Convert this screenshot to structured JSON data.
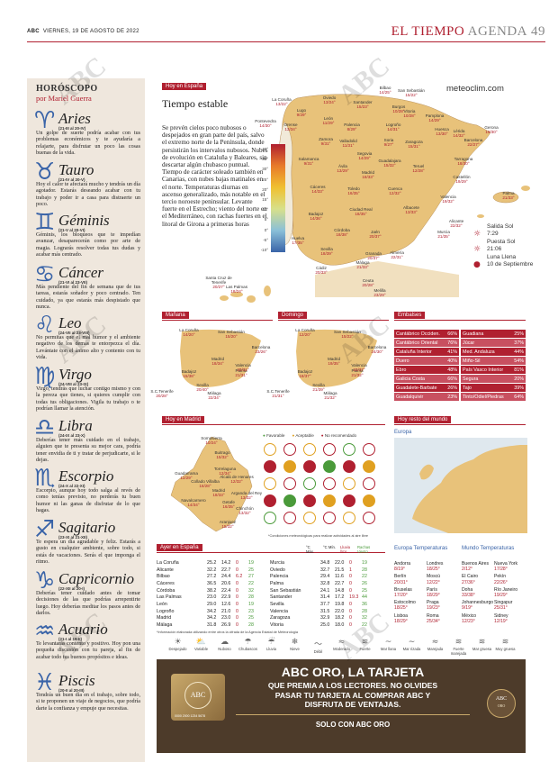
{
  "header": {
    "paper": "ABC",
    "date": "VIERNES, 19 DE AGOSTO DE 2022",
    "section": "EL TIEMPO",
    "agenda": "AGENDA",
    "page": "49"
  },
  "watermark": "ABC",
  "horoscope": {
    "title": "HORÓSCOPO",
    "author": "por Mariel Guerra",
    "signs": [
      {
        "glyph": "♈",
        "name": "Aries",
        "dates": "(21-III al 20-IV)",
        "text": "Un golpe de suerte podría acabar con tus problemas económicos y te ayudaría a relajarte, para disfrutar un poco las cosas buenas de la vida."
      },
      {
        "glyph": "♉",
        "name": "Tauro",
        "dates": "(21-IV al 20-V)",
        "text": "Hoy el calor te afectará mucho y tendrás un día agotador. Estarás deseando acabar con tu trabajo y poder ir a casa para distraerte un poco."
      },
      {
        "glyph": "♊",
        "name": "Géminis",
        "dates": "(21-V al 20-VI)",
        "text": "Géminis, los bloqueos que te impedían avanzar, desaparecerán como por arte de magia. Lograrás resolver todas tus dudas y acabar más centrado."
      },
      {
        "glyph": "♋",
        "name": "Cáncer",
        "dates": "(21-VI al 23-VII)",
        "text": "Más pendiente del fin de semana que de tus tareas, estarás soñador y poco centrado. Ten cuidado, ya que estarás más despistado que nunca."
      },
      {
        "glyph": "♌",
        "name": "Leo",
        "dates": "(24-VII al 23-VIII)",
        "text": "No permitas que el mal humor y el ambiente negativo de los demás te entorpezca el día. Levántate con el ánimo alto y contento con tu vida."
      },
      {
        "glyph": "♍",
        "name": "Virgo",
        "dates": "(24-VIII al 23-IX)",
        "text": "Virgo, tendrás que luchar contigo mismo y con la pereza que tienes, si quieres cumplir con todas tus obligaciones. Vigila tu trabajo o te podrían llamar la atención."
      },
      {
        "glyph": "♎",
        "name": "Libra",
        "dates": "(24-IX al 23-X)",
        "text": "Deberías tener más cuidado en el trabajo, alguien que te presenta su mejor cara, podría tener envidia de ti y tratar de perjudicarte, si le dejas."
      },
      {
        "glyph": "♏",
        "name": "Escorpio",
        "dates": "(24-X al 22-XI)",
        "text": "Escorpio, aunque hoy todo salga al revés de como tenías previsto, no perderás tu buen humor ni las ganas de disfrutar de lo que hagas."
      },
      {
        "glyph": "♐",
        "name": "Sagitario",
        "dates": "(23-XI al 21-XII)",
        "text": "Te espera un día agradable y feliz. Estarás a gusto en cualquier ambiente, sobre todo, si estás de vacaciones. Serás el que imponga el ritmo."
      },
      {
        "glyph": "♑",
        "name": "Capricornio",
        "dates": "(22-XII al 20-I)",
        "text": "Deberías tener cuidado antes de tomar decisiones de las que podrías arrepentirte luego. Hoy deberías meditar los pasos antes de darlos."
      },
      {
        "glyph": "♒",
        "name": "Acuario",
        "dates": "(21-I al 19-II)",
        "text": "Te levantarás contento y positivo. Hoy pon una pequeña discusión con tu pareja, al fin de acabar todo tus buenos propósitos e ideas."
      },
      {
        "glyph": "♓",
        "name": "Piscis",
        "dates": "(20-II al 20-III)",
        "text": "Tendrás un buen día en el trabajo, sobre todo, si te proponen un viaje de negocios, que podría darte la confianza y empuje que necesitas."
      }
    ]
  },
  "spain": {
    "label": "Hoy en España",
    "title": "Tiempo estable",
    "body": "Se prevén cielos poco nubosos o despejados en gran parte del país, salvo el extremo norte de la Península, donde persistirán los intervalos nubosos. Nubes de evolución en Cataluña y Baleares, sin descartar algún chubasco puntual. Tiempo de carácter soleado también en Canarias, con nubes bajas matinales en el norte. Temperaturas diurnas en ascenso generalizado, más notable en el tercio noroeste peninsular. Levante fuerte en el Estrecho; viento del norte en el Mediterráneo, con rachas fuertes en el litoral de Girona a primeras horas",
    "source": "meteoclim.com",
    "scale": [
      "40°",
      "35°",
      "30°",
      "25°",
      "20°",
      "15°",
      "10°",
      "5°",
      "0°",
      "-5°",
      "-10°"
    ],
    "cities": [
      {
        "n": "La Coruña",
        "t": "13/22°"
      },
      {
        "n": "Oviedo",
        "t": "13/24°"
      },
      {
        "n": "Bilbao",
        "t": "14/25°"
      },
      {
        "n": "San Sebastián",
        "t": "15/22°"
      },
      {
        "n": "Lugo",
        "t": "9/29°"
      },
      {
        "n": "Santander",
        "t": "15/23°"
      },
      {
        "n": "Burgos",
        "t": "10/28°"
      },
      {
        "n": "Vitoria",
        "t": "10/28°"
      },
      {
        "n": "Pamplona",
        "t": "14/29°"
      },
      {
        "n": "Pontevedra",
        "t": "14/30°"
      },
      {
        "n": "Orense",
        "t": "13/34°"
      },
      {
        "n": "León",
        "t": "11/29°"
      },
      {
        "n": "Palencia",
        "t": "8/29°"
      },
      {
        "n": "Logroño",
        "t": "14/31°"
      },
      {
        "n": "Huesca",
        "t": "13/30°"
      },
      {
        "n": "Lérida",
        "t": "14/32°"
      },
      {
        "n": "Gerona",
        "t": "19/30°"
      },
      {
        "n": "Zamora",
        "t": "9/31°"
      },
      {
        "n": "Valladolid",
        "t": "11/31°"
      },
      {
        "n": "Soria",
        "t": "9/27°"
      },
      {
        "n": "Zaragoza",
        "t": "15/31°"
      },
      {
        "n": "Barcelona",
        "t": "22/27°"
      },
      {
        "n": "Segovia",
        "t": "14/29°"
      },
      {
        "n": "Salamanca",
        "t": "9/31°"
      },
      {
        "n": "Ávila",
        "t": "13/29°"
      },
      {
        "n": "Guadalajara",
        "t": "15/32°"
      },
      {
        "n": "Tarragona",
        "t": "18/30°"
      },
      {
        "n": "Madrid",
        "t": "18/33°"
      },
      {
        "n": "Teruel",
        "t": "12/28°"
      },
      {
        "n": "Cáceres",
        "t": "14/33°"
      },
      {
        "n": "Toledo",
        "t": "16/35°"
      },
      {
        "n": "Cuenca",
        "t": "12/32°"
      },
      {
        "n": "Castellón",
        "t": "19/29°"
      },
      {
        "n": "Palma",
        "t": "21/33°"
      },
      {
        "n": "Valencia",
        "t": "19/32°"
      },
      {
        "n": "Badajoz",
        "t": "14/36°"
      },
      {
        "n": "Ciudad Real",
        "t": "18/35°"
      },
      {
        "n": "Albacete",
        "t": "13/33°"
      },
      {
        "n": "Alicante",
        "t": "22/32°"
      },
      {
        "n": "Córdoba",
        "t": "18/38°"
      },
      {
        "n": "Jaén",
        "t": "20/37°"
      },
      {
        "n": "Murcia",
        "t": "21/35°"
      },
      {
        "n": "Huelva",
        "t": "17/35°"
      },
      {
        "n": "Sevilla",
        "t": "18/39°"
      },
      {
        "n": "Granada",
        "t": "20/37°"
      },
      {
        "n": "Almería",
        "t": "22/31°"
      },
      {
        "n": "Cádiz",
        "t": "20/33°"
      },
      {
        "n": "Málaga",
        "t": "21/33°"
      },
      {
        "n": "Ceuta",
        "t": "20/28°"
      },
      {
        "n": "Melilla",
        "t": "23/29°"
      },
      {
        "n": "Santa Cruz de Tenerife",
        "t": "20/27°"
      },
      {
        "n": "Las Palmas",
        "t": "18/24°"
      }
    ],
    "sun": {
      "sunrise_label": "Salida Sol",
      "sunrise": "7:29",
      "sunset_label": "Puesta Sol",
      "sunset": "21:06",
      "moon_label": "Luna Llena",
      "moon": "10 de Septiembre"
    }
  },
  "tomorrow": {
    "label": "Mañana",
    "cities": [
      {
        "n": "La Coruña",
        "t": "14/20°"
      },
      {
        "n": "San Sebastián",
        "t": "15/20°"
      },
      {
        "n": "Barcelona",
        "t": "23/26°"
      },
      {
        "n": "Madrid",
        "t": "18/34°"
      },
      {
        "n": "Palma",
        "t": "21/31°"
      },
      {
        "n": "Valencia",
        "t": "20/31°"
      },
      {
        "n": "Badajoz",
        "t": "15/38°"
      },
      {
        "n": "Sevilla",
        "t": "20/40°"
      },
      {
        "n": "S.C.Tenerife",
        "t": "20/28°"
      },
      {
        "n": "Málaga",
        "t": "22/34°"
      }
    ]
  },
  "sunday": {
    "label": "Domingo",
    "cities": [
      {
        "n": "La Coruña",
        "t": "12/20°"
      },
      {
        "n": "San Sebastián",
        "t": "15/22°"
      },
      {
        "n": "Barcelona",
        "t": "24/30°"
      },
      {
        "n": "Madrid",
        "t": "19/35°"
      },
      {
        "n": "Palma",
        "t": "21/32°"
      },
      {
        "n": "Valencia",
        "t": "23/37°"
      },
      {
        "n": "Badajoz",
        "t": "18/37°"
      },
      {
        "n": "Sevilla",
        "t": "21/39°"
      },
      {
        "n": "S.C.Tenerife",
        "t": "21/31°"
      },
      {
        "n": "Málaga",
        "t": "21/32°"
      }
    ]
  },
  "reservoirs": {
    "label": "Embalses",
    "rows": [
      [
        "Cantábrico Occiden.",
        "66%",
        "Guadiana",
        "25%"
      ],
      [
        "Cantábrico Oriental",
        "76%",
        "Júcar",
        "37%"
      ],
      [
        "Cataluña Interior",
        "41%",
        "Med. Andaluza",
        "44%"
      ],
      [
        "Duero",
        "40%",
        "Miño-Sil",
        "54%"
      ],
      [
        "Ebro",
        "48%",
        "País Vasco Interior",
        "81%"
      ],
      [
        "Galicia Costa",
        "66%",
        "Segura",
        "20%"
      ],
      [
        "Guadalete-Barbate",
        "26%",
        "Tajo",
        "39%"
      ],
      [
        "Guadalquivir",
        "23%",
        "Tinto/Odiel/Piedras",
        "64%"
      ]
    ]
  },
  "madrid": {
    "label": "Hoy en Madrid",
    "legend": [
      "Favorable",
      "Aceptable",
      "No recomendado"
    ],
    "towns": [
      {
        "n": "Somosierra",
        "t": "10/24°"
      },
      {
        "n": "Buitrago",
        "t": "15/32°"
      },
      {
        "n": "Torrelaguna",
        "t": "12/34°"
      },
      {
        "n": "Guadarrama",
        "t": "12/29°"
      },
      {
        "n": "Alcalá de Henares",
        "t": "12/32°"
      },
      {
        "n": "Collado Villalba",
        "t": "16/28°"
      },
      {
        "n": "Madrid",
        "t": "18/33°"
      },
      {
        "n": "Arganda del Rey",
        "t": "13/32°"
      },
      {
        "n": "Navalcarnero",
        "t": "14/34°"
      },
      {
        "n": "Getafe",
        "t": "16/35°"
      },
      {
        "n": "Chinchón",
        "t": "13/32°"
      },
      {
        "n": "Aranjuez",
        "t": "15/32°"
      }
    ],
    "note": "*Condiciones meteorológicas para realizar actividades al aire libre"
  },
  "world_label": "Hoy resto del mundo",
  "europe_label": "Europa",
  "yesterday": {
    "label": "Ayer en España",
    "headers": [
      "°C Máx.",
      "°C Mín.",
      "Lluvia l/m²",
      "Rachas Viento"
    ],
    "left": [
      [
        "La Coruña",
        "25.2",
        "14.2",
        "0",
        "19"
      ],
      [
        "Alicante",
        "32.2",
        "22.7",
        "0",
        "25"
      ],
      [
        "Bilbao",
        "27.2",
        "24.4",
        "6.2",
        "27"
      ],
      [
        "Cáceres",
        "36.5",
        "20.6",
        "0",
        "22"
      ],
      [
        "Córdoba",
        "38.2",
        "22.4",
        "0",
        "32"
      ],
      [
        "Las Palmas",
        "23.0",
        "22.9",
        "0",
        "28"
      ],
      [
        "León",
        "29.0",
        "12.6",
        "0",
        "19"
      ],
      [
        "Logroño",
        "34.2",
        "21.0",
        "0",
        "23"
      ],
      [
        "Madrid",
        "34.2",
        "23.0",
        "0",
        "25"
      ],
      [
        "Málaga",
        "31.8",
        "26.9",
        "0",
        "28"
      ]
    ],
    "right": [
      [
        "Murcia",
        "34.8",
        "22.0",
        "0",
        "19"
      ],
      [
        "Oviedo",
        "32.7",
        "21.5",
        "1",
        "28"
      ],
      [
        "Palencia",
        "29.4",
        "11.6",
        "0",
        "22"
      ],
      [
        "Palma",
        "32.8",
        "22.7",
        "0",
        "26"
      ],
      [
        "San Sebastián",
        "24.1",
        "14.8",
        "0",
        "25"
      ],
      [
        "Santander",
        "31.4",
        "17.2",
        "19.3",
        "44"
      ],
      [
        "Sevilla",
        "37.7",
        "19.8",
        "0",
        "36"
      ],
      [
        "Valencia",
        "31.5",
        "22.0",
        "0",
        "28"
      ],
      [
        "Zaragoza",
        "32.9",
        "18.2",
        "0",
        "32"
      ],
      [
        "Vitoria",
        "25.0",
        "18.0",
        "0",
        "22"
      ]
    ],
    "footer": "*Información elaborada utilizando entre otros la cifrada de la Agencia Estatal de Meteorología"
  },
  "legend_icons": [
    {
      "g": "☀",
      "l": "Despejado"
    },
    {
      "g": "⛅",
      "l": "Variable"
    },
    {
      "g": "☁",
      "l": "Nuboso"
    },
    {
      "g": "☂",
      "l": "Chubascos"
    },
    {
      "g": "☔",
      "l": "Lluvia"
    },
    {
      "g": "❄",
      "l": "Nieve"
    },
    {
      "g": "〜",
      "l": "Débil"
    },
    {
      "g": "≈",
      "l": "Moderado"
    },
    {
      "g": "≋",
      "l": "Fuerte"
    },
    {
      "g": "~",
      "l": "Mar llana"
    },
    {
      "g": "∼",
      "l": "Mar rizada"
    },
    {
      "g": "≈",
      "l": "Marejada"
    },
    {
      "g": "≋",
      "l": "Fuerte marejada"
    },
    {
      "g": "≋",
      "l": "Mar gruesa"
    },
    {
      "g": "≋",
      "l": "Muy gruesa"
    }
  ],
  "europe_temps": {
    "title": "Europa Temperaturas",
    "rows": [
      [
        "Andorra",
        "8/19°",
        "Londres",
        "18/25°"
      ],
      [
        "Berlín",
        "20/31°",
        "Moscú",
        "12/22°"
      ],
      [
        "Bruselas",
        "17/20°",
        "París",
        "18/29°"
      ],
      [
        "Estocolmo",
        "18/25°",
        "Praga",
        "19/23°"
      ],
      [
        "Lisboa",
        "18/29°",
        "Roma",
        "25/34°"
      ]
    ]
  },
  "world_temps": {
    "title": "Mundo Temperaturas",
    "rows": [
      [
        "Buenos Aires",
        "2/12°",
        "Nueva York",
        "17/28°"
      ],
      [
        "El Cairo",
        "27/36°",
        "Pekín",
        "22/26°"
      ],
      [
        "Doha",
        "33/38°",
        "Río Janeiro",
        "19/29°"
      ],
      [
        "Johannesburgo",
        "9/19°",
        "Singapur",
        "25/31°"
      ],
      [
        "México",
        "12/23°",
        "Sidney",
        "12/19°"
      ]
    ]
  },
  "ad": {
    "title": "ABC ORO, LA TARJETA",
    "lines": [
      "QUE PREMIA A LOS LECTORES. NO OLVIDES",
      "PASAR TU TARJETA AL COMPRAR ABC Y",
      "DISFRUTA DE VENTAJAS."
    ],
    "cta": "SOLO CON ABC ORO",
    "card_number": "0000 2000 1234 5678",
    "brand": "ABC",
    "brand_sub": "ORO"
  },
  "colors": {
    "accent": "#b02030",
    "blue": "#3a64a8",
    "horo_bg": "#efe7dd",
    "map_land": "#e8c27a",
    "sea": "#dfe8ee"
  }
}
